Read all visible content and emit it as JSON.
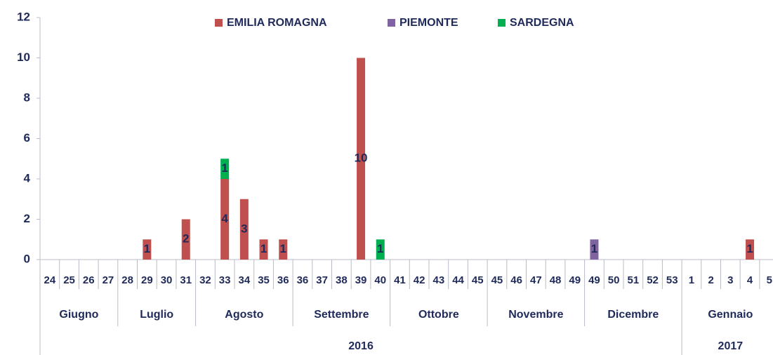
{
  "chart_data": {
    "type": "bar",
    "stacked": true,
    "legend": "top",
    "years": [
      {
        "name": "2016",
        "months": [
          {
            "name": "Giugno",
            "weeks": [
              "24",
              "25",
              "26",
              "27"
            ]
          },
          {
            "name": "Luglio",
            "weeks": [
              "28",
              "29",
              "30",
              "31"
            ]
          },
          {
            "name": "Agosto",
            "weeks": [
              "32",
              "33",
              "34",
              "35",
              "36"
            ]
          },
          {
            "name": "Settembre",
            "weeks": [
              "36",
              "37",
              "38",
              "39",
              "40"
            ]
          },
          {
            "name": "Ottobre",
            "weeks": [
              "41",
              "42",
              "43",
              "44",
              "45"
            ]
          },
          {
            "name": "Novembre",
            "weeks": [
              "45",
              "46",
              "47",
              "48",
              "49"
            ]
          },
          {
            "name": "Dicembre",
            "weeks": [
              "49",
              "50",
              "51",
              "52",
              "53"
            ]
          }
        ]
      },
      {
        "name": "2017",
        "months": [
          {
            "name": "Gennaio",
            "weeks": [
              "1",
              "2",
              "3",
              "4",
              "5"
            ]
          }
        ]
      }
    ],
    "series": [
      {
        "name": "EMILIA ROMAGNA",
        "color": "#c0504d",
        "values": [
          null,
          null,
          null,
          null,
          null,
          1,
          null,
          2,
          null,
          4,
          3,
          1,
          1,
          null,
          null,
          null,
          10,
          null,
          null,
          null,
          null,
          null,
          null,
          null,
          null,
          null,
          null,
          null,
          null,
          null,
          null,
          null,
          null,
          null,
          null,
          null,
          1,
          null
        ]
      },
      {
        "name": "PIEMONTE",
        "color": "#8064a2",
        "values": [
          null,
          null,
          null,
          null,
          null,
          null,
          null,
          null,
          null,
          null,
          null,
          null,
          null,
          null,
          null,
          null,
          null,
          null,
          null,
          null,
          null,
          null,
          null,
          null,
          null,
          null,
          null,
          null,
          1,
          null,
          null,
          null,
          null,
          null,
          null,
          null,
          null,
          null
        ]
      },
      {
        "name": "SARDEGNA",
        "color": "#00b050",
        "values": [
          null,
          null,
          null,
          null,
          null,
          null,
          null,
          null,
          null,
          1,
          null,
          null,
          null,
          null,
          null,
          null,
          null,
          1,
          null,
          null,
          null,
          null,
          null,
          null,
          null,
          null,
          null,
          null,
          null,
          null,
          null,
          null,
          null,
          null,
          null,
          null,
          null,
          null
        ]
      }
    ],
    "ylim": [
      0,
      12
    ],
    "yticks": [
      0,
      2,
      4,
      6,
      8,
      10,
      12
    ]
  }
}
